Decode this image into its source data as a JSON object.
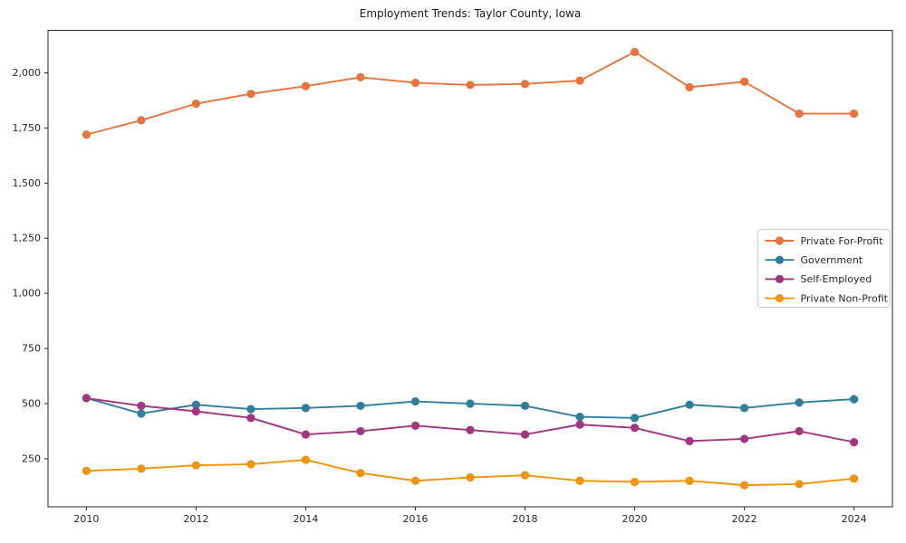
{
  "chart": {
    "title": "Employment Trends: Taylor County, Iowa"
  },
  "chart_data": {
    "type": "line",
    "title": "Employment Trends: Taylor County, Iowa",
    "xlabel": "",
    "ylabel": "",
    "x": [
      2010,
      2011,
      2012,
      2013,
      2014,
      2015,
      2016,
      2017,
      2018,
      2019,
      2020,
      2021,
      2022,
      2023,
      2024
    ],
    "series": [
      {
        "name": "Private For-Profit",
        "color": "#e8743b",
        "values": [
          1720,
          1785,
          1860,
          1905,
          1940,
          1980,
          1955,
          1945,
          1950,
          1965,
          2095,
          1935,
          1960,
          1815,
          1815
        ]
      },
      {
        "name": "Government",
        "color": "#2e7e9c",
        "values": [
          525,
          455,
          495,
          475,
          480,
          490,
          510,
          500,
          490,
          440,
          435,
          495,
          480,
          505,
          520
        ]
      },
      {
        "name": "Self-Employed",
        "color": "#a23480",
        "values": [
          525,
          490,
          465,
          435,
          360,
          375,
          400,
          380,
          360,
          405,
          390,
          330,
          340,
          375,
          325
        ]
      },
      {
        "name": "Private Non-Profit",
        "color": "#f0940a",
        "values": [
          195,
          205,
          220,
          225,
          245,
          185,
          150,
          165,
          175,
          150,
          145,
          150,
          130,
          135,
          160
        ]
      }
    ],
    "xticks": [
      2010,
      2012,
      2014,
      2016,
      2018,
      2020,
      2022,
      2024
    ],
    "xtick_labels": [
      "2010",
      "2012",
      "2014",
      "2016",
      "2018",
      "2020",
      "2022",
      "2024"
    ],
    "yticks": [
      250,
      500,
      750,
      1000,
      1250,
      1500,
      1750,
      2000
    ],
    "ytick_labels": [
      "250",
      "500",
      "750",
      "1,000",
      "1,250",
      "1,500",
      "1,750",
      "2,000"
    ],
    "xlim": [
      2009.3,
      2024.7
    ],
    "ylim": [
      32,
      2193
    ],
    "grid": false,
    "legend_position": "center right",
    "marker": "circle",
    "axis_color": "#262626",
    "background": "#ffffff"
  }
}
